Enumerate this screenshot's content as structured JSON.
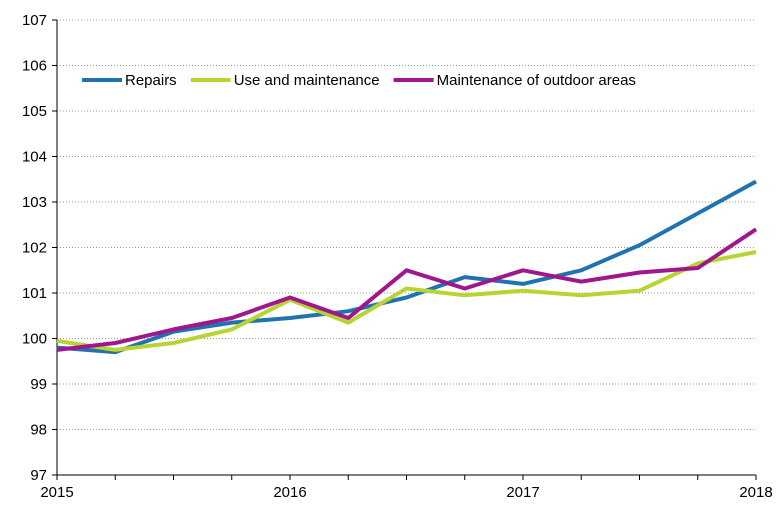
{
  "chart_data": {
    "type": "line",
    "title": "",
    "xlabel": "",
    "ylabel": "",
    "x_tick_labels": [
      "2015",
      "2016",
      "2017",
      "2018"
    ],
    "y_ticks": [
      97,
      98,
      99,
      100,
      101,
      102,
      103,
      104,
      105,
      106,
      107
    ],
    "ylim": [
      97,
      107
    ],
    "xlim": [
      2015.0,
      2018.0
    ],
    "grid": "horizontal, dotted",
    "legend_position": "top",
    "x": [
      2015.0,
      2015.25,
      2015.5,
      2015.75,
      2016.0,
      2016.25,
      2016.5,
      2016.75,
      2017.0,
      2017.25,
      2017.5,
      2017.75,
      2018.0
    ],
    "series": [
      {
        "name": "Repairs",
        "color": "#1f74b0",
        "values": [
          99.8,
          99.7,
          100.15,
          100.35,
          100.45,
          100.6,
          100.9,
          101.35,
          101.2,
          101.5,
          102.05,
          102.75,
          103.45
        ]
      },
      {
        "name": "Use and maintenance",
        "color": "#b8d432",
        "values": [
          99.95,
          99.75,
          99.9,
          100.2,
          100.85,
          100.35,
          101.1,
          100.95,
          101.05,
          100.95,
          101.05,
          101.65,
          101.9
        ]
      },
      {
        "name": "Maintenance of outdoor areas",
        "color": "#a0168c",
        "values": [
          99.75,
          99.9,
          100.2,
          100.45,
          100.9,
          100.45,
          101.5,
          101.1,
          101.5,
          101.25,
          101.45,
          101.55,
          102.4
        ]
      }
    ]
  }
}
